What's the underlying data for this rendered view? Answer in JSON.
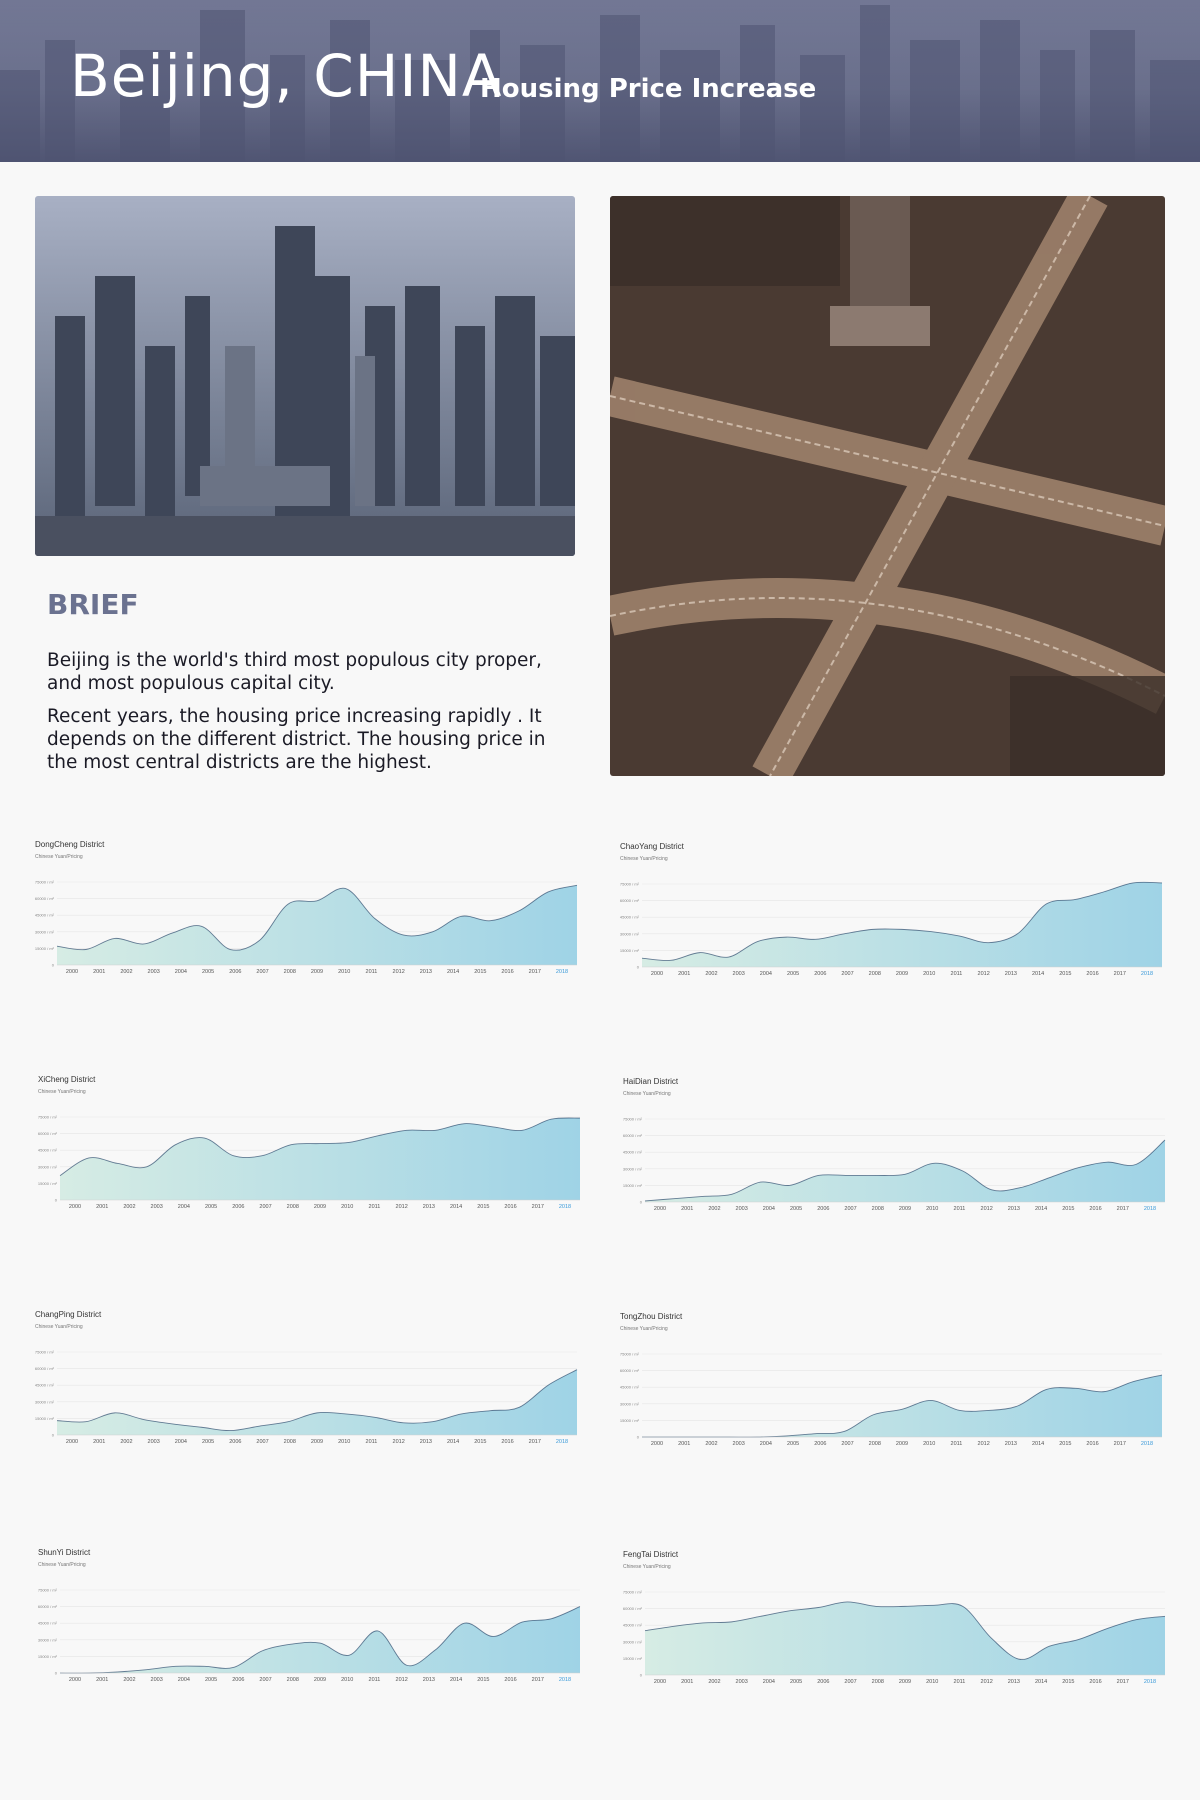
{
  "header": {
    "title": "Beijing, CHINA",
    "subtitle": "Housing Price Increase"
  },
  "brief": {
    "heading": "BRIEF",
    "paragraph1": "Beijing is the world's third most populous city proper, and most populous capital city.",
    "paragraph2": "Recent years, the housing price increasing rapidly . It depends on the different district. The housing price in the most central districts are the highest."
  },
  "colors": {
    "header_bg": "#6b7190",
    "brief_heading": "#6b7290",
    "area_start": "#d6ece4",
    "area_end": "#9fd3e6",
    "line": "#2c4a6c",
    "highlight_tick": "#3a9ad9"
  },
  "chart_meta": {
    "subtitle": "Chinese Yuan/Pricing",
    "y_ticks": [
      "0",
      "15000 / m²",
      "30000 / m²",
      "45000 / m²",
      "60000 / m²",
      "75000 / m²"
    ]
  },
  "chart_data": [
    {
      "type": "area",
      "title": "DongCheng District",
      "x": [
        "2000",
        "2001",
        "2002",
        "2003",
        "2004",
        "2005",
        "2006",
        "2007",
        "2008",
        "2009",
        "2010",
        "2011",
        "2012",
        "2013",
        "2014",
        "2015",
        "2016",
        "2017",
        "2018"
      ],
      "values": [
        17000,
        14000,
        24000,
        19000,
        29000,
        35000,
        14000,
        22000,
        55000,
        58000,
        69000,
        42000,
        27000,
        30000,
        44000,
        40000,
        49000,
        66000,
        72000
      ],
      "ylim": [
        0,
        75000
      ],
      "highlight_x": "2018"
    },
    {
      "type": "area",
      "title": "ChaoYang District",
      "x": [
        "2000",
        "2001",
        "2002",
        "2003",
        "2004",
        "2005",
        "2006",
        "2007",
        "2008",
        "2009",
        "2010",
        "2011",
        "2012",
        "2013",
        "2014",
        "2015",
        "2016",
        "2017",
        "2018"
      ],
      "values": [
        8000,
        6000,
        13000,
        9000,
        23000,
        27000,
        25000,
        30000,
        34000,
        34000,
        32000,
        28000,
        22000,
        30000,
        57000,
        61000,
        68000,
        76000,
        76000
      ],
      "ylim": [
        0,
        75000
      ],
      "highlight_x": "2018"
    },
    {
      "type": "area",
      "title": "XiCheng District",
      "x": [
        "2000",
        "2001",
        "2002",
        "2003",
        "2004",
        "2005",
        "2006",
        "2007",
        "2008",
        "2009",
        "2010",
        "2011",
        "2012",
        "2013",
        "2014",
        "2015",
        "2016",
        "2017",
        "2018"
      ],
      "values": [
        22000,
        38000,
        33000,
        30000,
        50000,
        56000,
        40000,
        40000,
        50000,
        51000,
        52000,
        58000,
        63000,
        63000,
        69000,
        66000,
        63000,
        73000,
        74000
      ],
      "ylim": [
        0,
        75000
      ],
      "highlight_x": "2018"
    },
    {
      "type": "area",
      "title": "HaiDian District",
      "x": [
        "2000",
        "2001",
        "2002",
        "2003",
        "2004",
        "2005",
        "2006",
        "2007",
        "2008",
        "2009",
        "2010",
        "2011",
        "2012",
        "2013",
        "2014",
        "2015",
        "2016",
        "2017",
        "2018"
      ],
      "values": [
        1000,
        3000,
        5000,
        7000,
        18000,
        15000,
        24000,
        24000,
        24000,
        25000,
        35000,
        28000,
        11000,
        13000,
        22000,
        31000,
        36000,
        34000,
        56000
      ],
      "ylim": [
        0,
        75000
      ],
      "highlight_x": "2018"
    },
    {
      "type": "area",
      "title": "ChangPing District",
      "x": [
        "2000",
        "2001",
        "2002",
        "2003",
        "2004",
        "2005",
        "2006",
        "2007",
        "2008",
        "2009",
        "2010",
        "2011",
        "2012",
        "2013",
        "2014",
        "2015",
        "2016",
        "2017",
        "2018"
      ],
      "values": [
        13000,
        12000,
        20000,
        14000,
        10000,
        7000,
        4000,
        8000,
        12000,
        20000,
        19000,
        16000,
        11000,
        12000,
        19000,
        22000,
        25000,
        45000,
        59000
      ],
      "ylim": [
        0,
        75000
      ],
      "highlight_x": "2018"
    },
    {
      "type": "area",
      "title": "TongZhou District",
      "x": [
        "2000",
        "2001",
        "2002",
        "2003",
        "2004",
        "2005",
        "2006",
        "2007",
        "2008",
        "2009",
        "2010",
        "2011",
        "2012",
        "2013",
        "2014",
        "2015",
        "2016",
        "2017",
        "2018"
      ],
      "values": [
        0,
        0,
        0,
        0,
        0,
        1000,
        3000,
        5000,
        20000,
        25000,
        33000,
        24000,
        24000,
        28000,
        43000,
        44000,
        41000,
        50000,
        56000
      ],
      "ylim": [
        0,
        75000
      ],
      "highlight_x": "2018"
    },
    {
      "type": "area",
      "title": "ShunYi District",
      "x": [
        "2000",
        "2001",
        "2002",
        "2003",
        "2004",
        "2005",
        "2006",
        "2007",
        "2008",
        "2009",
        "2010",
        "2011",
        "2012",
        "2013",
        "2014",
        "2015",
        "2016",
        "2017",
        "2018"
      ],
      "values": [
        0,
        0,
        1000,
        3000,
        6000,
        6000,
        5000,
        20000,
        26000,
        27000,
        16000,
        38000,
        7000,
        21000,
        45000,
        33000,
        46000,
        49000,
        60000
      ],
      "ylim": [
        0,
        75000
      ],
      "highlight_x": "2018"
    },
    {
      "type": "area",
      "title": "FengTai District",
      "x": [
        "2000",
        "2001",
        "2002",
        "2003",
        "2004",
        "2005",
        "2006",
        "2007",
        "2008",
        "2009",
        "2010",
        "2011",
        "2012",
        "2013",
        "2014",
        "2015",
        "2016",
        "2017",
        "2018"
      ],
      "values": [
        40000,
        44000,
        47000,
        48000,
        53000,
        58000,
        61000,
        66000,
        62000,
        62000,
        63000,
        62000,
        33000,
        14000,
        26000,
        32000,
        42000,
        50000,
        53000
      ],
      "ylim": [
        0,
        75000
      ],
      "highlight_x": "2018"
    }
  ]
}
